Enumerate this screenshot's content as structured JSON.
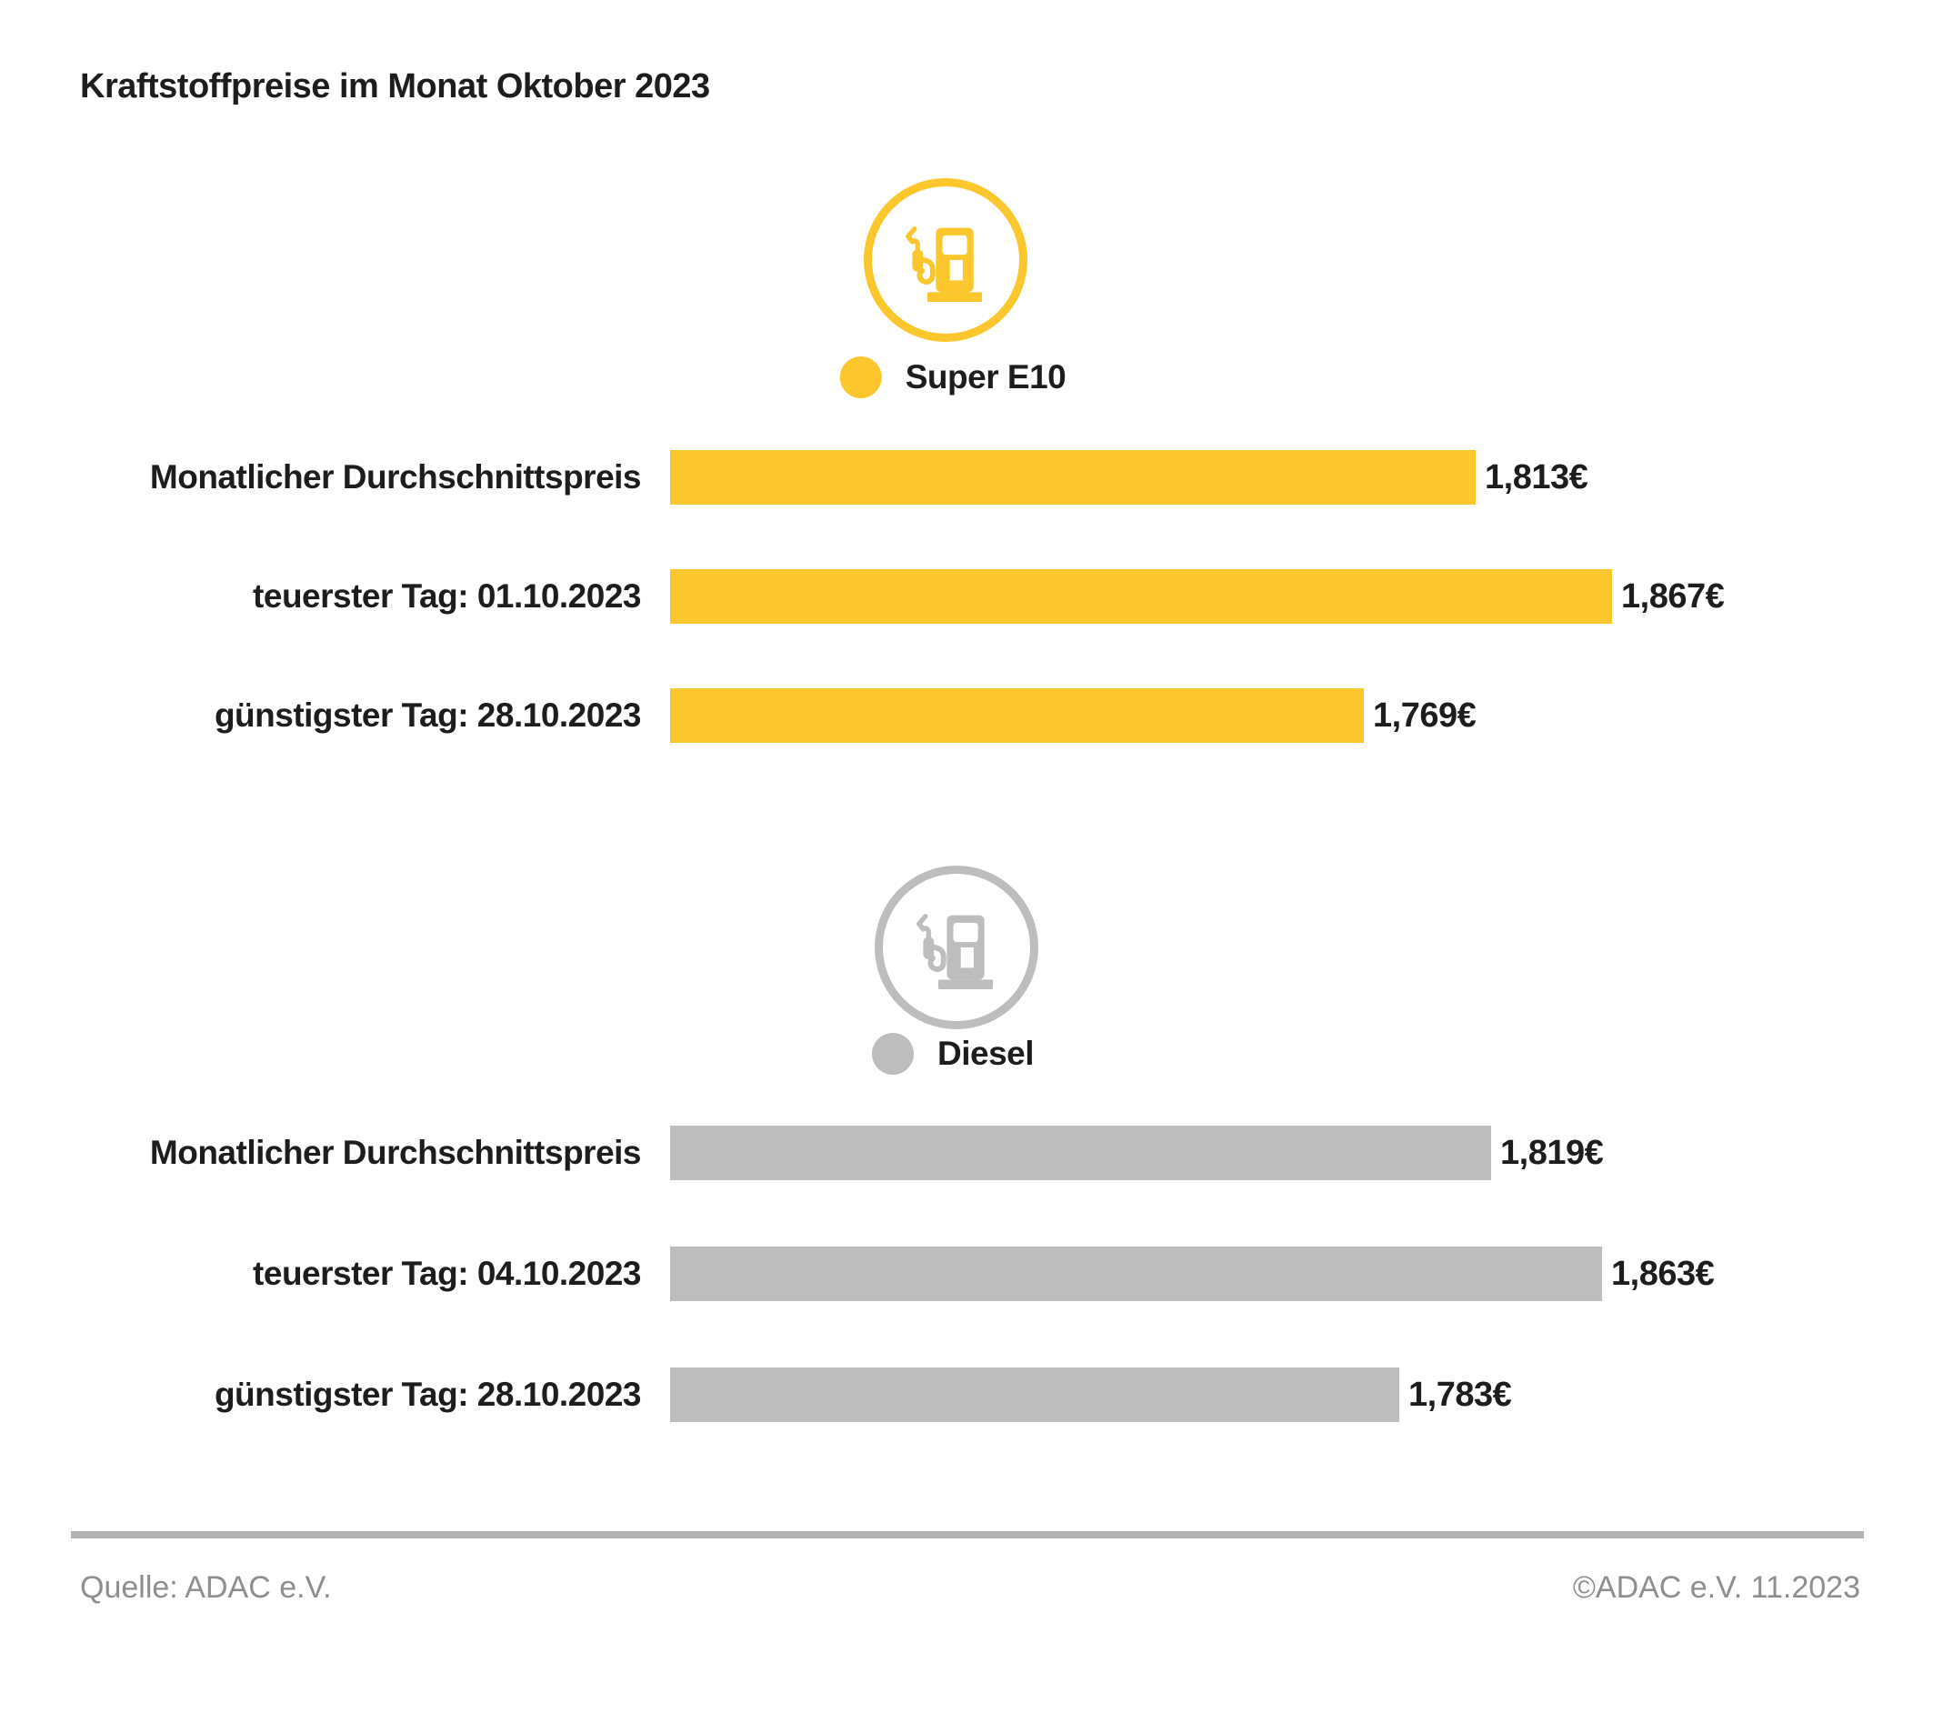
{
  "title": "Kraftstoffpreise im Monat Oktober 2023",
  "colors": {
    "super_e10_yellow": "#FCC72C",
    "diesel_gray": "#BDBDBD",
    "text_dark": "#1D1D1B",
    "footer_gray": "#8E8E8E",
    "divider_gray": "#B2B2B2"
  },
  "footer": {
    "source": "Quelle: ADAC e.V.",
    "copyright": "©ADAC e.V. 11.2023"
  },
  "chart_data": [
    {
      "type": "bar",
      "orientation": "horizontal",
      "legend": "Super E10",
      "icon": "fuel-pump-icon",
      "color": "#FCC72C",
      "value_axis_hidden": true,
      "bars_not_zero_based": true,
      "categories": [
        "Monatlicher Durchschnittspreis",
        "teuerster Tag: 01.10.2023",
        "günstigster Tag: 28.10.2023"
      ],
      "values": [
        1.813,
        1.867,
        1.769
      ],
      "rows": [
        {
          "label": "Monatlicher Durchschnittspreis",
          "value": 1.813,
          "display": "1,813€"
        },
        {
          "label": "teuerster Tag: 01.10.2023",
          "value": 1.867,
          "display": "1,867€"
        },
        {
          "label": "günstigster Tag: 28.10.2023",
          "value": 1.769,
          "display": "1,769€"
        }
      ]
    },
    {
      "type": "bar",
      "orientation": "horizontal",
      "legend": "Diesel",
      "icon": "fuel-pump-icon",
      "color": "#BDBDBD",
      "value_axis_hidden": true,
      "bars_not_zero_based": true,
      "categories": [
        "Monatlicher Durchschnittspreis",
        "teuerster Tag: 04.10.2023",
        "günstigster Tag: 28.10.2023"
      ],
      "values": [
        1.819,
        1.863,
        1.783
      ],
      "rows": [
        {
          "label": "Monatlicher Durchschnittspreis",
          "value": 1.819,
          "display": "1,819€"
        },
        {
          "label": "teuerster Tag: 04.10.2023",
          "value": 1.863,
          "display": "1,863€"
        },
        {
          "label": "günstigster Tag: 28.10.2023",
          "value": 1.783,
          "display": "1,783€"
        }
      ]
    }
  ]
}
